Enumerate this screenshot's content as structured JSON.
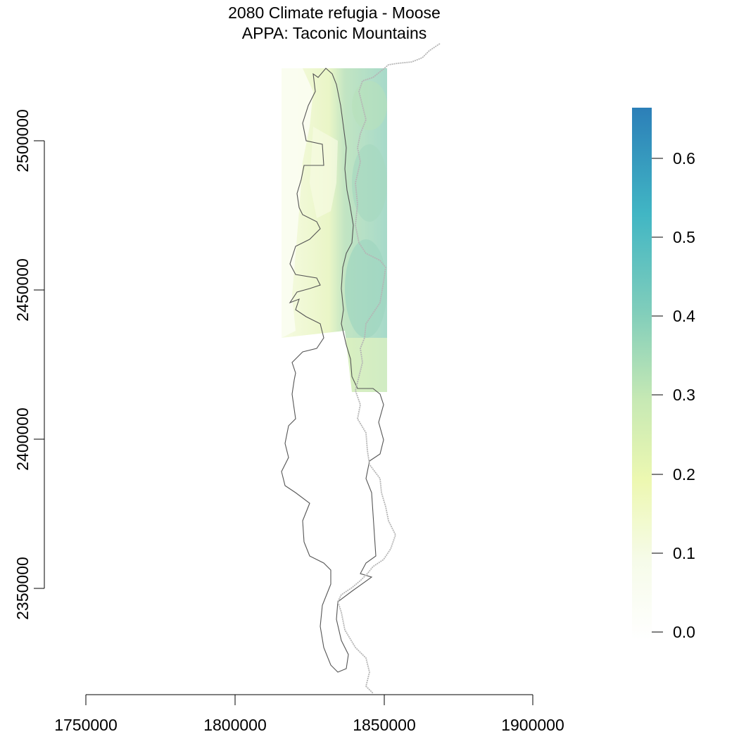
{
  "title": "2080 Climate refugia - Moose",
  "subtitle": "APPA: Taconic Mountains",
  "x_axis": {
    "ticks": [
      "1750000",
      "1800000",
      "1850000",
      "1900000"
    ]
  },
  "y_axis": {
    "ticks": [
      "2350000",
      "2400000",
      "2450000",
      "2500000"
    ]
  },
  "legend": {
    "ticks": [
      "0.0",
      "0.1",
      "0.2",
      "0.3",
      "0.4",
      "0.5",
      "0.6"
    ],
    "range": [
      0,
      0.66
    ],
    "colors": [
      "#ffffff",
      "#f6fbe9",
      "#edf8b1",
      "#c7e9b4",
      "#7fcdbb",
      "#41b6c4",
      "#2c7fb8"
    ]
  },
  "colors": {
    "boundary": "#555555",
    "trail": "#b5b5b5",
    "low": "#eef7c4",
    "mid": "#c9e7b6",
    "high": "#8fcfbf"
  }
}
